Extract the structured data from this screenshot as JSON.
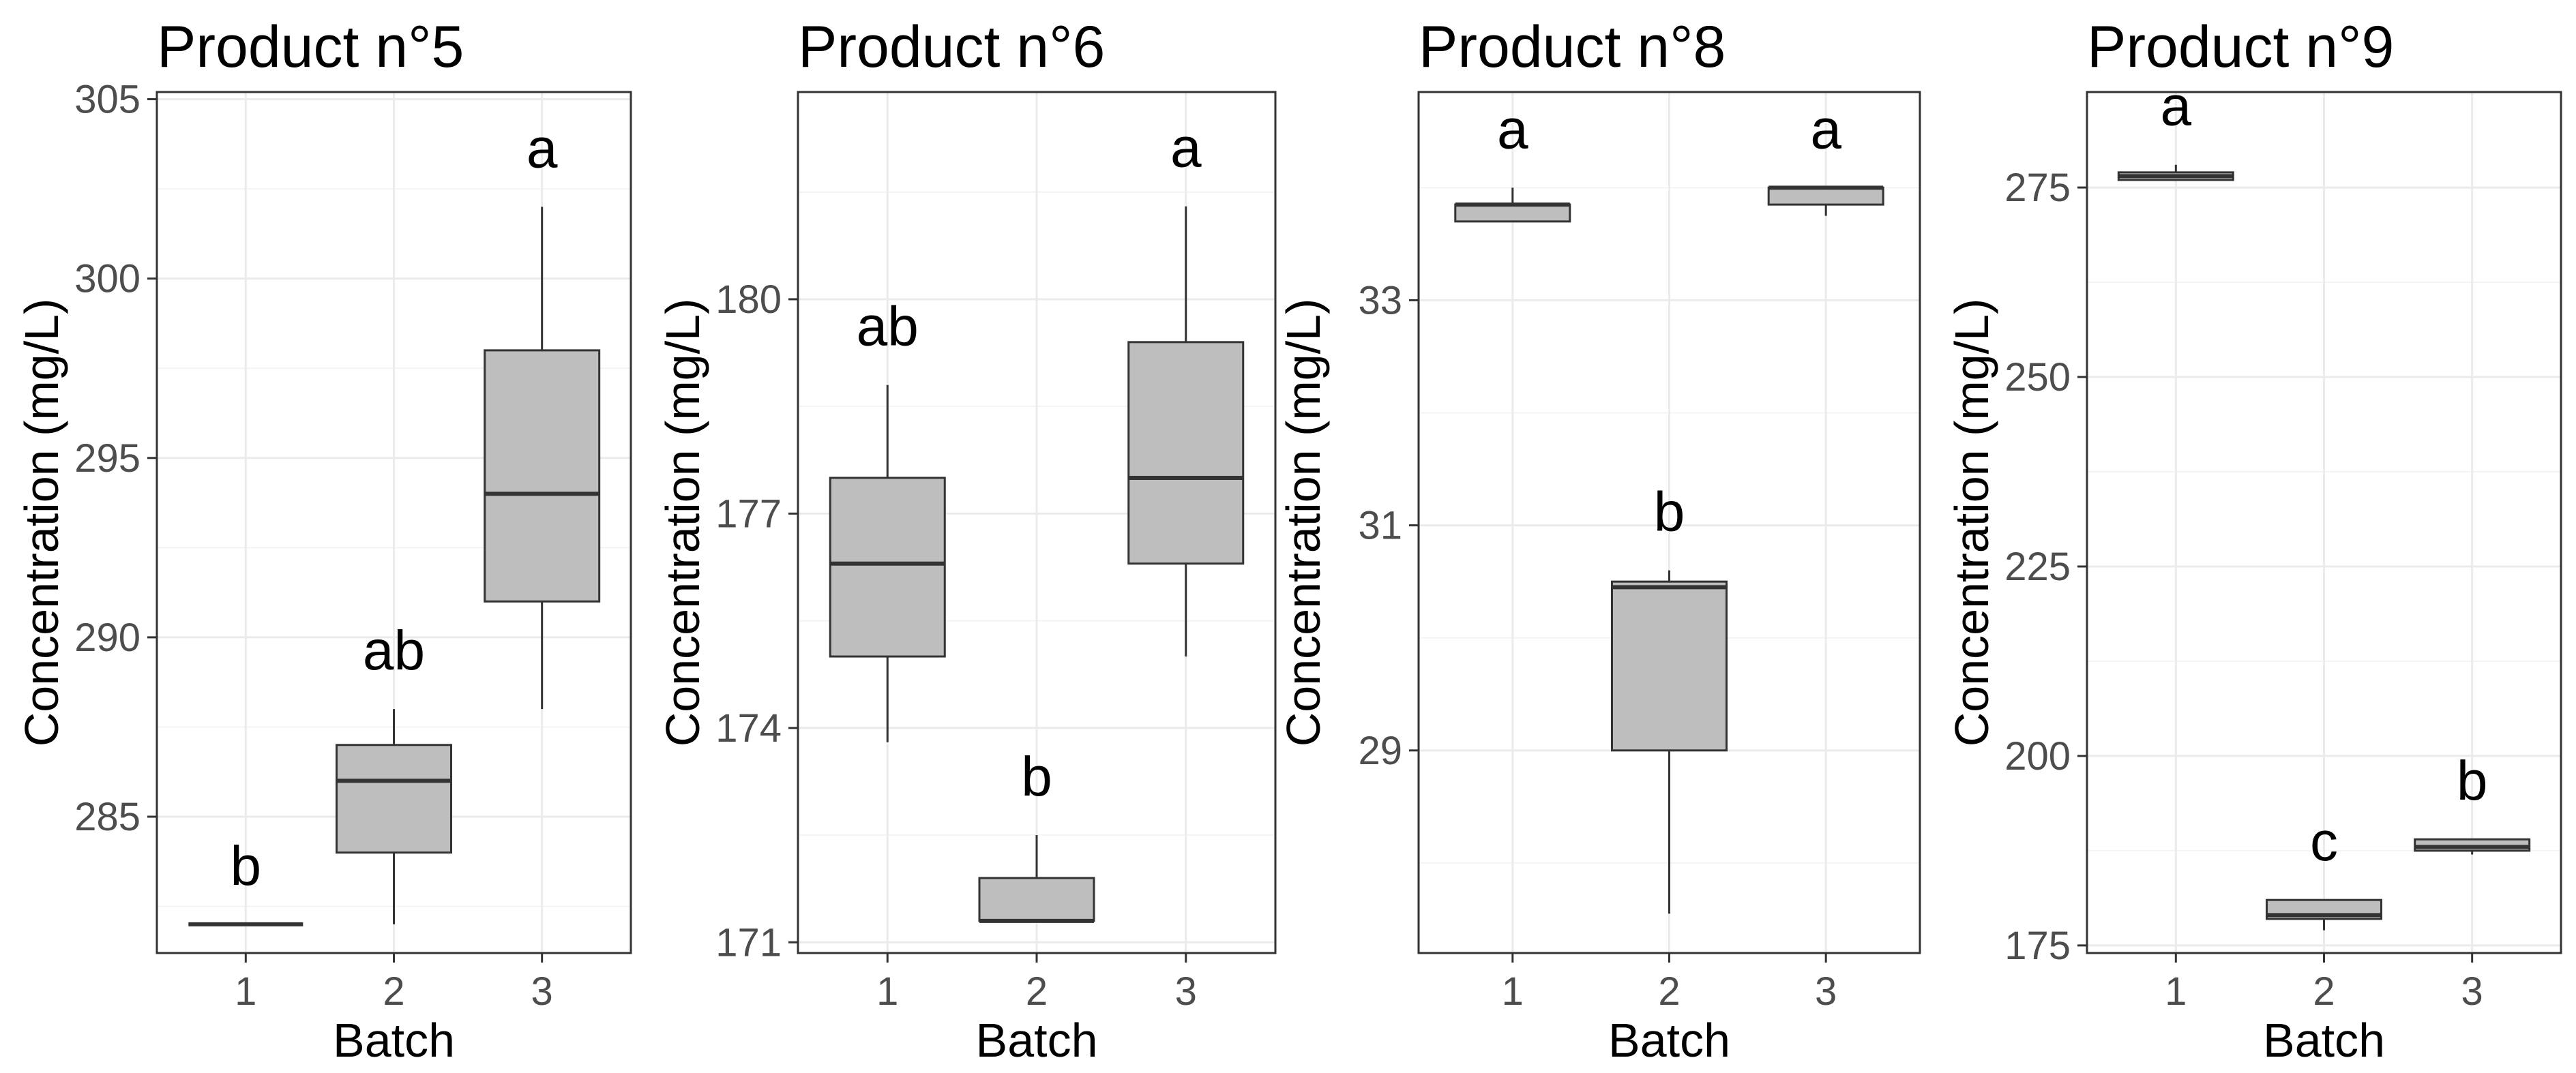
{
  "chart_data": [
    {
      "type": "boxplot",
      "title": "Product n°5",
      "xlabel": "Batch",
      "ylabel": "Concentration (mg/L)",
      "categories": [
        "1",
        "2",
        "3"
      ],
      "ylim": [
        281.2,
        305.2
      ],
      "yticks": [
        285,
        290,
        295,
        300,
        305
      ],
      "grid": true,
      "boxes": [
        {
          "batch": "1",
          "min": 282,
          "q1": 282,
          "median": 282,
          "q3": 282,
          "max": 282,
          "letter": "b"
        },
        {
          "batch": "2",
          "min": 282,
          "q1": 284,
          "median": 286,
          "q3": 287,
          "max": 288,
          "letter": "ab"
        },
        {
          "batch": "3",
          "min": 288,
          "q1": 291,
          "median": 294,
          "q3": 298,
          "max": 302,
          "letter": "a"
        }
      ]
    },
    {
      "type": "boxplot",
      "title": "Product n°6",
      "xlabel": "Batch",
      "ylabel": "Concentration (mg/L)",
      "categories": [
        "1",
        "2",
        "3"
      ],
      "ylim": [
        170.85,
        182.9
      ],
      "yticks": [
        171,
        174,
        177,
        180
      ],
      "grid": true,
      "boxes": [
        {
          "batch": "1",
          "min": 173.8,
          "q1": 175.0,
          "median": 176.3,
          "q3": 177.5,
          "max": 178.8,
          "letter": "ab"
        },
        {
          "batch": "2",
          "min": 171.3,
          "q1": 171.3,
          "median": 171.3,
          "q3": 171.9,
          "max": 172.5,
          "letter": "b"
        },
        {
          "batch": "3",
          "min": 175.0,
          "q1": 176.3,
          "median": 177.5,
          "q3": 179.4,
          "max": 181.3,
          "letter": "a"
        }
      ]
    },
    {
      "type": "boxplot",
      "title": "Product n°8",
      "xlabel": "Batch",
      "ylabel": "Concentration (mg/L)",
      "categories": [
        "1",
        "2",
        "3"
      ],
      "ylim": [
        27.2,
        34.85
      ],
      "yticks": [
        29,
        31,
        33
      ],
      "grid": true,
      "boxes": [
        {
          "batch": "1",
          "min": 33.7,
          "q1": 33.7,
          "median": 33.85,
          "q3": 33.85,
          "max": 34.0,
          "letter": "a"
        },
        {
          "batch": "2",
          "min": 27.55,
          "q1": 29.0,
          "median": 30.45,
          "q3": 30.5,
          "max": 30.6,
          "letter": "b"
        },
        {
          "batch": "3",
          "min": 33.75,
          "q1": 33.85,
          "median": 34.0,
          "q3": 34.0,
          "max": 34.0,
          "letter": "a"
        }
      ]
    },
    {
      "type": "boxplot",
      "title": "Product n°9",
      "xlabel": "Batch",
      "ylabel": "Concentration (mg/L)",
      "categories": [
        "1",
        "2",
        "3"
      ],
      "ylim": [
        174,
        287.6
      ],
      "yticks": [
        175,
        200,
        225,
        250,
        275
      ],
      "grid": true,
      "boxes": [
        {
          "batch": "1",
          "min": 276,
          "q1": 276,
          "median": 276.5,
          "q3": 277,
          "max": 278,
          "letter": "a"
        },
        {
          "batch": "2",
          "min": 177,
          "q1": 178.5,
          "median": 179,
          "q3": 181,
          "max": 181,
          "letter": "c"
        },
        {
          "batch": "3",
          "min": 187,
          "q1": 187.5,
          "median": 188,
          "q3": 189,
          "max": 189,
          "letter": "b"
        }
      ]
    }
  ]
}
